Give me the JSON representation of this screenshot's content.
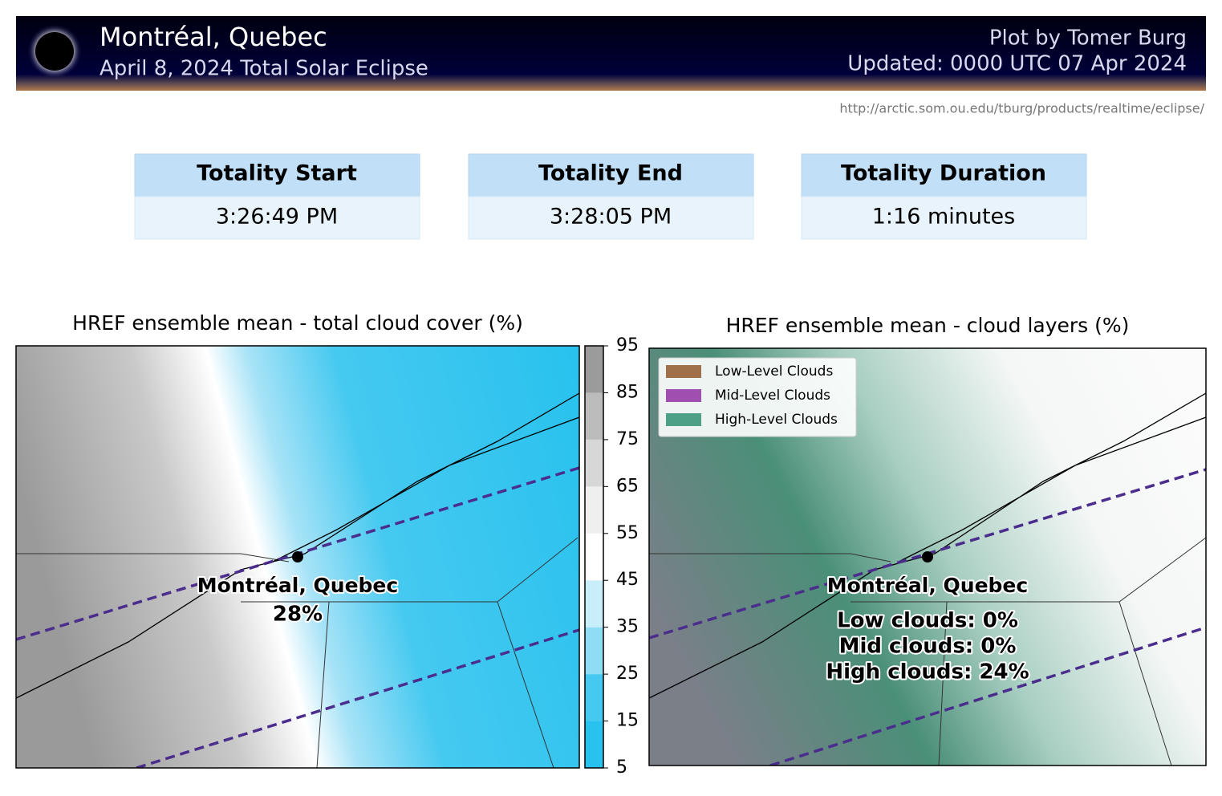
{
  "header": {
    "title": "Montréal, Quebec",
    "subtitle": "April 8, 2024 Total Solar Eclipse",
    "credit": "Plot by Tomer Burg",
    "updated": "Updated: 0000 UTC 07 Apr 2024",
    "url": "http://arctic.som.ou.edu/tburg/products/realtime/eclipse/"
  },
  "totality": [
    {
      "label": "Totality Start",
      "value": "3:26:49 PM"
    },
    {
      "label": "Totality End",
      "value": "3:28:05 PM"
    },
    {
      "label": "Totality Duration",
      "value": "1:16 minutes"
    }
  ],
  "maps": [
    {
      "title": "HREF ensemble mean - total cloud cover (%)",
      "city": "Montréal, Quebec",
      "annotation": [
        "28%"
      ]
    },
    {
      "title": "HREF ensemble mean - cloud layers (%)",
      "city": "Montréal, Quebec",
      "annotation": [
        "Low clouds: 0%",
        "Mid clouds: 0%",
        "High clouds: 24%"
      ]
    }
  ],
  "colorbar": {
    "lim": [
      5,
      95
    ],
    "ticks": [
      5,
      15,
      25,
      35,
      45,
      55,
      65,
      75,
      85,
      95
    ],
    "colors": [
      "#29c2ee",
      "#45c9f0",
      "#8fdcf5",
      "#c8eefa",
      "#ffffff",
      "#efefef",
      "#d7d7d7",
      "#bcbcbc",
      "#9b9b9b"
    ]
  },
  "legend": [
    {
      "name": "Low-Level Clouds",
      "color": "#a0704a"
    },
    {
      "name": "Mid-Level Clouds",
      "color": "#a04fb0"
    },
    {
      "name": "High-Level Clouds",
      "color": "#4d9f85"
    }
  ]
}
